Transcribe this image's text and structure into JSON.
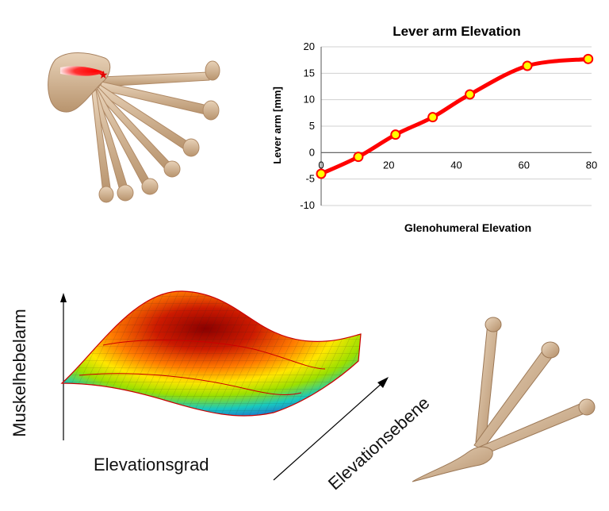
{
  "chart_data": {
    "type": "line",
    "title": "Lever arm Elevation",
    "xlabel": "Glenohumeral Elevation",
    "ylabel": "Lever arm [mm]",
    "xlim": [
      0,
      80
    ],
    "ylim": [
      -10,
      20
    ],
    "xticks": [
      0,
      20,
      40,
      60,
      80
    ],
    "yticks": [
      -10,
      -5,
      0,
      5,
      10,
      15,
      20
    ],
    "grid": "horizontal",
    "series": [
      {
        "line_color": "#ff0000",
        "marker_color": "#ffff00",
        "points": [
          {
            "x": 0,
            "y": -4.0
          },
          {
            "x": 11,
            "y": -0.8
          },
          {
            "x": 22,
            "y": 3.4
          },
          {
            "x": 33,
            "y": 6.7
          },
          {
            "x": 44,
            "y": 11.0
          },
          {
            "x": 61,
            "y": 16.4
          },
          {
            "x": 79,
            "y": 17.7
          }
        ]
      }
    ]
  },
  "surface_plot": {
    "z_axis_label": "Muskelhebelarm",
    "x_axis_label": "Elevationsgrad",
    "y_axis_label": "Elevationsebene",
    "colormap": "jet"
  },
  "illustrations": {
    "top_left": "scapula-humerus-fan",
    "bottom_right": "humerus-three-positions"
  }
}
